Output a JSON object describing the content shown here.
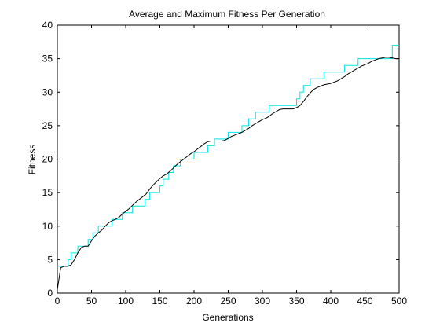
{
  "chart_data": {
    "type": "line",
    "title": "Average and Maximum Fitness Per Generation",
    "xlabel": "Generations",
    "ylabel": "Fitness",
    "xlim": [
      0,
      500
    ],
    "ylim": [
      0,
      40
    ],
    "xticks": [
      0,
      50,
      100,
      150,
      200,
      250,
      300,
      350,
      400,
      450,
      500
    ],
    "yticks": [
      0,
      5,
      10,
      15,
      20,
      25,
      30,
      35,
      40
    ],
    "grid": false,
    "legend": "none",
    "series": [
      {
        "color": "#00e5e5",
        "style": "step",
        "x": [
          0,
          5,
          16,
          20,
          25,
          30,
          35,
          45,
          52,
          60,
          70,
          80,
          95,
          102,
          110,
          120,
          128,
          135,
          145,
          150,
          155,
          163,
          170,
          180,
          190,
          200,
          210,
          220,
          230,
          240,
          250,
          265,
          270,
          280,
          290,
          300,
          310,
          320,
          330,
          345,
          350,
          355,
          360,
          365,
          370,
          380,
          385,
          390,
          395,
          400,
          410,
          420,
          430,
          440,
          450,
          490,
          500
        ],
        "values": [
          4,
          4,
          5,
          6,
          6,
          7,
          7,
          8,
          9,
          10,
          10,
          11,
          12,
          12,
          13,
          13,
          14,
          15,
          15,
          16,
          17,
          18,
          19,
          20,
          20,
          21,
          21,
          22,
          23,
          23,
          24,
          24,
          25,
          26,
          27,
          27,
          28,
          28,
          28,
          28,
          29,
          30,
          31,
          31,
          32,
          32,
          32,
          33,
          33,
          33,
          33,
          34,
          34,
          35,
          35,
          37,
          37
        ]
      },
      {
        "color": "#000000",
        "style": "line",
        "x": [
          0,
          3,
          5,
          10,
          15,
          20,
          25,
          30,
          35,
          40,
          45,
          50,
          55,
          60,
          65,
          70,
          75,
          80,
          85,
          90,
          95,
          100,
          105,
          110,
          115,
          120,
          125,
          130,
          135,
          140,
          145,
          150,
          155,
          160,
          165,
          170,
          175,
          180,
          185,
          190,
          195,
          200,
          205,
          210,
          215,
          220,
          225,
          230,
          235,
          240,
          245,
          250,
          255,
          260,
          265,
          270,
          275,
          280,
          285,
          290,
          295,
          300,
          305,
          310,
          315,
          320,
          325,
          330,
          335,
          340,
          345,
          350,
          355,
          360,
          365,
          370,
          375,
          380,
          385,
          390,
          395,
          400,
          405,
          410,
          415,
          420,
          425,
          430,
          435,
          440,
          445,
          450,
          455,
          460,
          465,
          470,
          475,
          480,
          485,
          490,
          495,
          500
        ],
        "values": [
          0.5,
          2.5,
          3.8,
          4,
          4,
          4.2,
          5,
          6,
          6.8,
          7,
          7,
          7.8,
          8.5,
          9,
          9.4,
          10,
          10.5,
          10.8,
          11,
          11.3,
          11.8,
          12.2,
          12.6,
          13.1,
          13.6,
          14,
          14.4,
          14.8,
          15.5,
          16.1,
          16.6,
          17.1,
          17.5,
          17.8,
          18.2,
          18.7,
          19.2,
          19.6,
          20,
          20.4,
          20.8,
          21.1,
          21.5,
          21.9,
          22.3,
          22.6,
          22.7,
          22.7,
          22.7,
          22.7,
          22.8,
          23.1,
          23.4,
          23.6,
          23.8,
          24,
          24.3,
          24.6,
          25,
          25.3,
          25.6,
          25.9,
          26.1,
          26.4,
          26.8,
          27.1,
          27.4,
          27.5,
          27.5,
          27.5,
          27.5,
          27.7,
          28,
          28.6,
          29.3,
          29.9,
          30.4,
          30.7,
          30.9,
          31.1,
          31.2,
          31.3,
          31.5,
          31.7,
          32,
          32.3,
          32.7,
          33,
          33.3,
          33.6,
          33.9,
          34.1,
          34.3,
          34.6,
          34.8,
          35,
          35.1,
          35.2,
          35.2,
          35.1,
          35,
          35
        ]
      }
    ]
  }
}
